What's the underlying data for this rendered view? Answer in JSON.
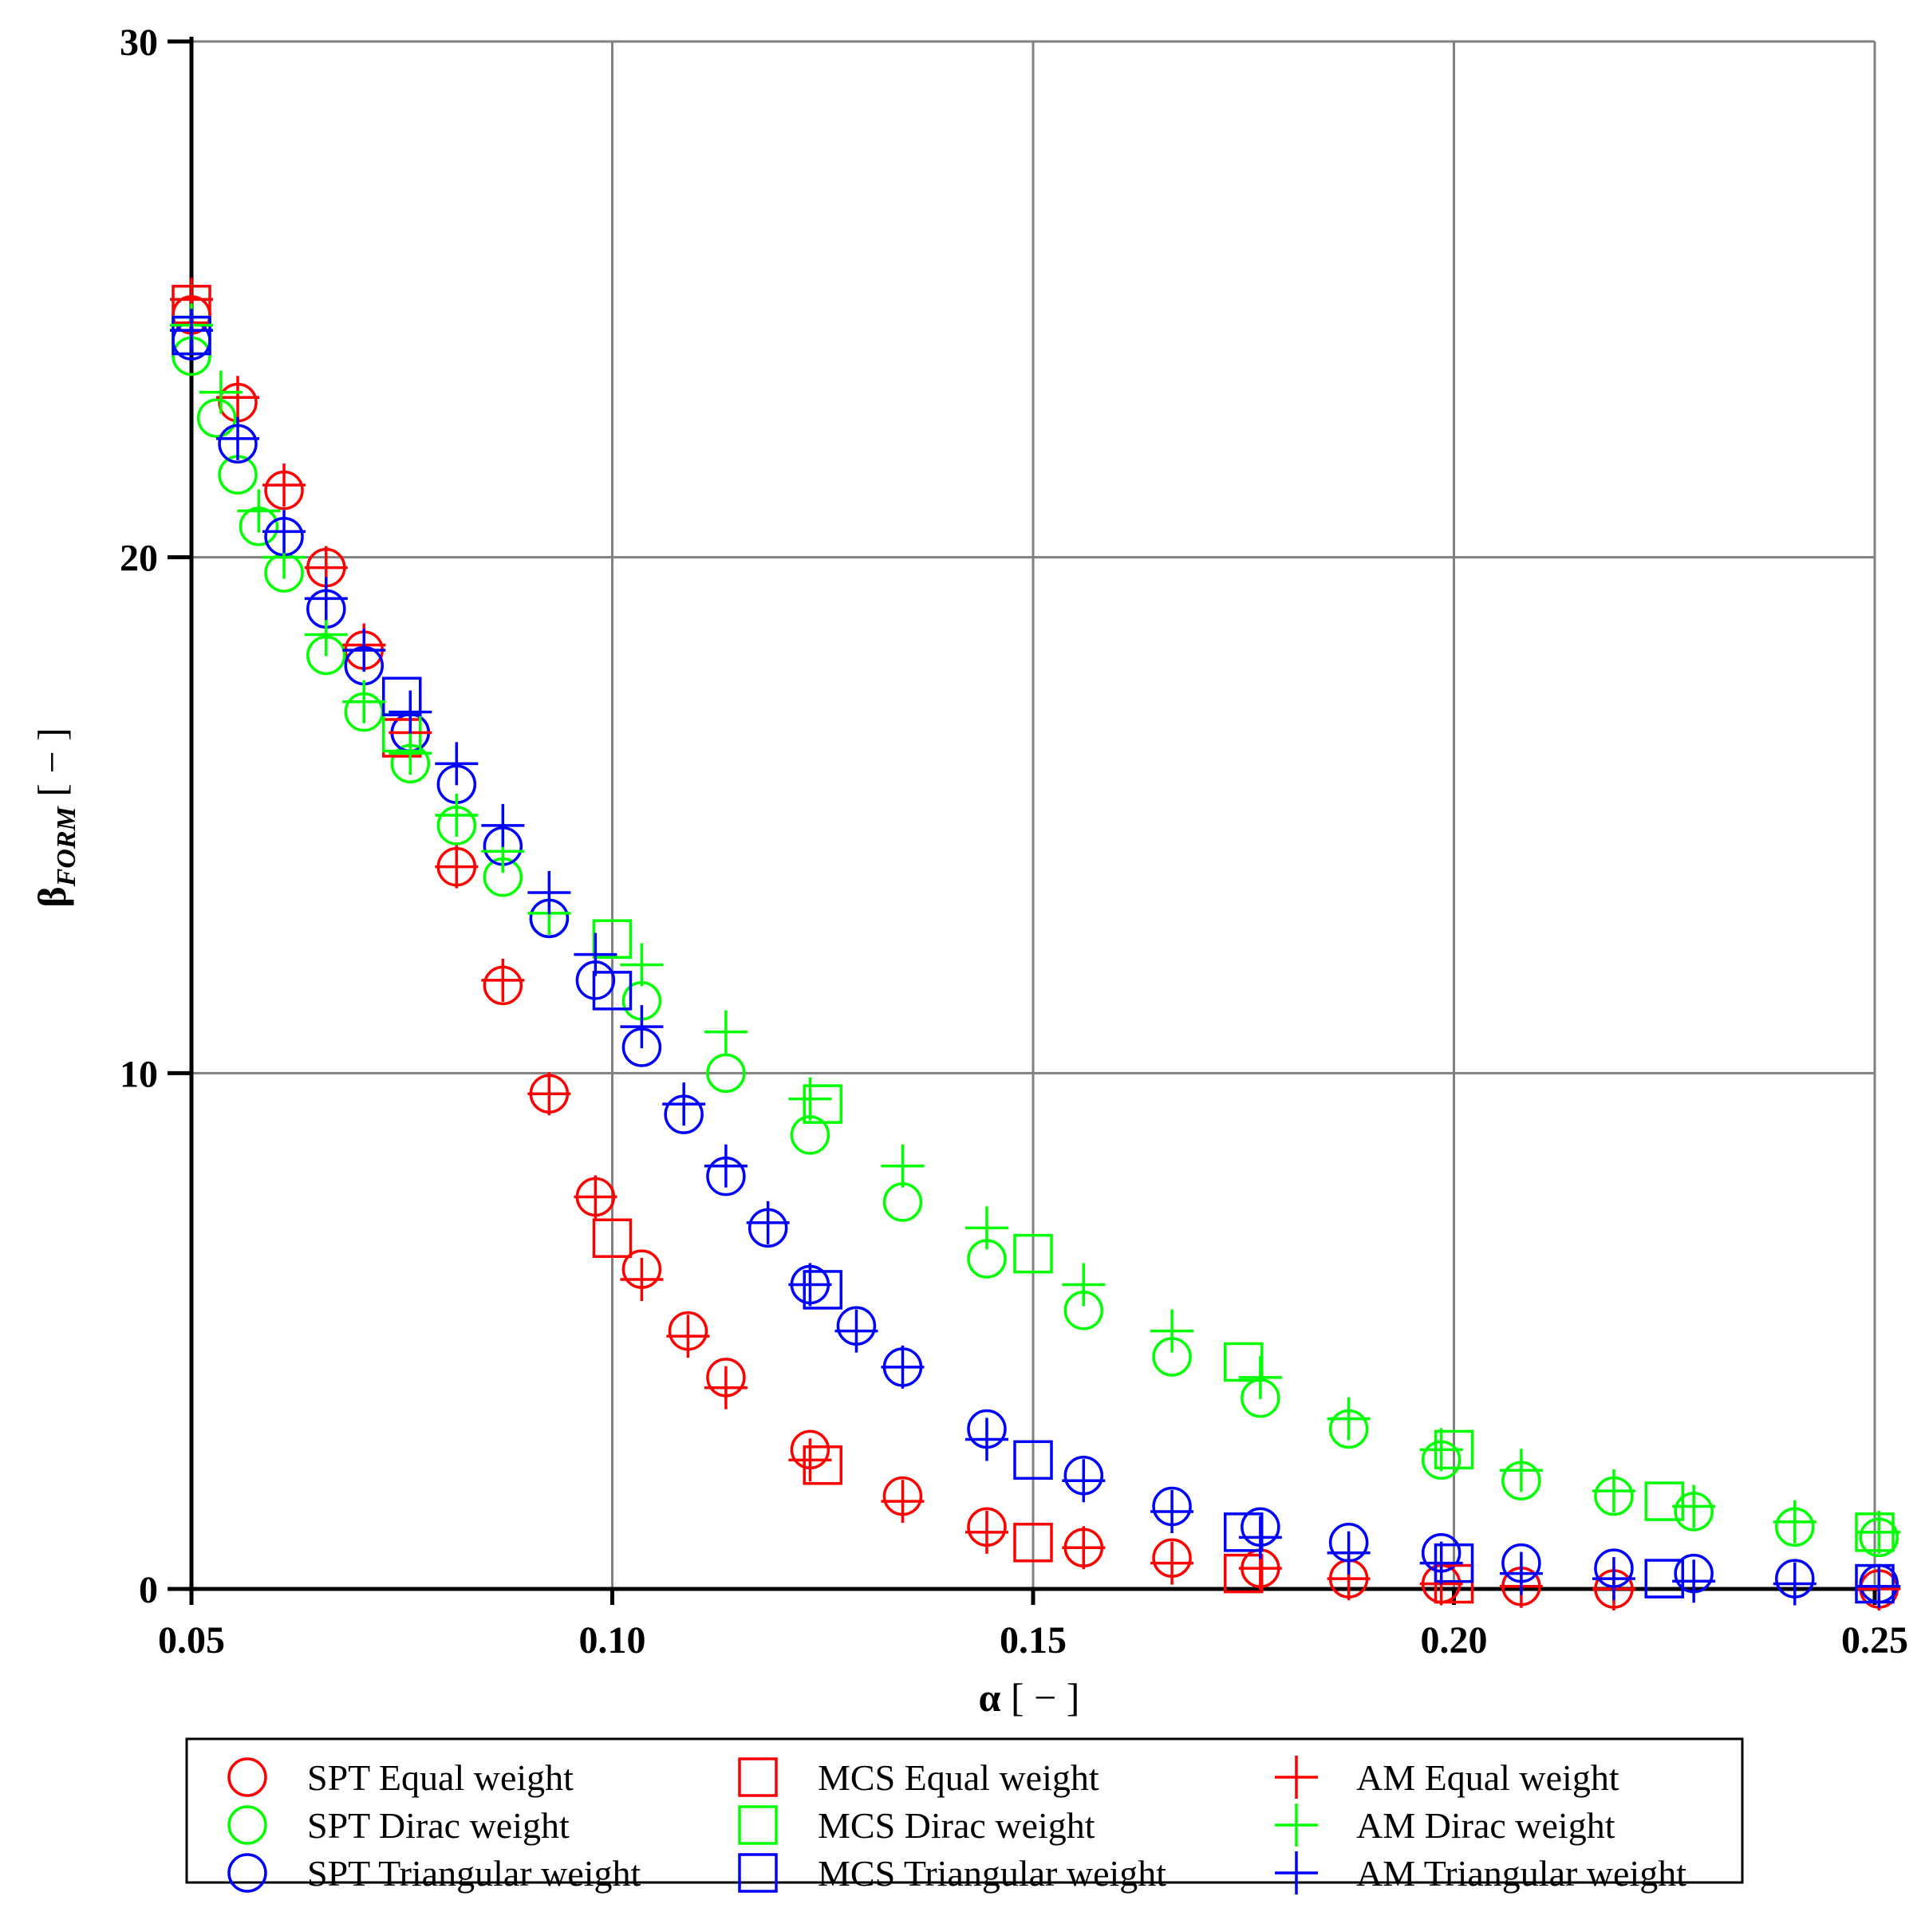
{
  "chart_data": {
    "type": "scatter",
    "title": "",
    "xlabel": {
      "symbol": "α",
      "unit": " [ − ]"
    },
    "ylabel": {
      "symbol": "β",
      "subscript": "FORM",
      "unit": " [ − ]"
    },
    "xlim": [
      0.05,
      0.25
    ],
    "ylim": [
      0,
      30
    ],
    "xticks": [
      0.05,
      0.1,
      0.15,
      0.2,
      0.25
    ],
    "xtick_labels": [
      "0.05",
      "0.10",
      "0.15",
      "0.20",
      "0.25"
    ],
    "yticks": [
      0,
      10,
      20,
      30
    ],
    "ytick_labels": [
      "0",
      "10",
      "20",
      "30"
    ],
    "grid": true,
    "legend_position": "bottom",
    "colors": {
      "red": "#ff0000",
      "green": "#00ff00",
      "blue": "#0000ff",
      "axis": "#000000",
      "grid": "#808080"
    },
    "series": [
      {
        "name": "SPT Equal weight",
        "marker": "circle",
        "color": "#ff0000",
        "x": [
          0.05,
          0.0555,
          0.061,
          0.066,
          0.0705,
          0.076,
          0.0815,
          0.087,
          0.0925,
          0.098,
          0.1035,
          0.109,
          0.1135,
          0.1235,
          0.1345,
          0.1445,
          0.156,
          0.1665,
          0.177,
          0.1875,
          0.1985,
          0.208,
          0.219,
          0.2505
        ],
        "y": [
          24.7,
          23.0,
          21.3,
          19.8,
          18.2,
          16.6,
          14.0,
          11.7,
          9.6,
          7.6,
          6.2,
          5.0,
          4.1,
          2.7,
          1.8,
          1.2,
          0.8,
          0.6,
          0.4,
          0.2,
          0.1,
          0.05,
          0.0,
          0.0
        ]
      },
      {
        "name": "SPT Dirac weight",
        "marker": "circle",
        "color": "#00ff00",
        "x": [
          0.05,
          0.053,
          0.0555,
          0.058,
          0.061,
          0.066,
          0.0705,
          0.076,
          0.0815,
          0.087,
          0.0925,
          0.1035,
          0.1135,
          0.1235,
          0.1345,
          0.1445,
          0.156,
          0.1665,
          0.177,
          0.1875,
          0.1985,
          0.208,
          0.219,
          0.2285,
          0.2405,
          0.2505
        ],
        "y": [
          23.9,
          22.7,
          21.6,
          20.6,
          19.7,
          18.1,
          17.0,
          16.0,
          14.8,
          13.8,
          13.0,
          11.4,
          10.0,
          8.8,
          7.5,
          6.4,
          5.4,
          4.5,
          3.7,
          3.1,
          2.5,
          2.1,
          1.8,
          1.5,
          1.2,
          1.0
        ]
      },
      {
        "name": "SPT Triangular weight",
        "marker": "circle",
        "color": "#0000ff",
        "x": [
          0.05,
          0.0555,
          0.061,
          0.066,
          0.0705,
          0.076,
          0.0815,
          0.087,
          0.0925,
          0.098,
          0.1035,
          0.1085,
          0.1135,
          0.1185,
          0.1235,
          0.129,
          0.1345,
          0.1445,
          0.156,
          0.1665,
          0.177,
          0.1875,
          0.1985,
          0.208,
          0.219,
          0.2285,
          0.2405,
          0.2505
        ],
        "y": [
          24.2,
          22.2,
          20.4,
          19.0,
          17.9,
          16.6,
          15.6,
          14.4,
          13.0,
          11.8,
          10.5,
          9.2,
          8.0,
          7.0,
          5.9,
          5.1,
          4.3,
          3.1,
          2.2,
          1.6,
          1.2,
          0.9,
          0.7,
          0.5,
          0.4,
          0.3,
          0.2,
          0.1
        ]
      },
      {
        "name": "MCS Equal weight",
        "marker": "square",
        "color": "#ff0000",
        "x": [
          0.05,
          0.075,
          0.1,
          0.125,
          0.15,
          0.175,
          0.2
        ],
        "y": [
          24.9,
          16.5,
          6.8,
          2.4,
          0.9,
          0.3,
          0.1
        ]
      },
      {
        "name": "MCS Dirac weight",
        "marker": "square",
        "color": "#00ff00",
        "x": [
          0.05,
          0.075,
          0.1,
          0.125,
          0.15,
          0.175,
          0.2,
          0.225,
          0.25
        ],
        "y": [
          24.3,
          16.6,
          12.6,
          9.4,
          6.5,
          4.4,
          2.7,
          1.7,
          1.1
        ]
      },
      {
        "name": "MCS Triangular weight",
        "marker": "square",
        "color": "#0000ff",
        "x": [
          0.05,
          0.075,
          0.1,
          0.125,
          0.15,
          0.175,
          0.2,
          0.225,
          0.25
        ],
        "y": [
          24.3,
          17.3,
          11.6,
          5.8,
          2.5,
          1.1,
          0.5,
          0.2,
          0.1
        ]
      },
      {
        "name": "AM Equal weight",
        "marker": "plus",
        "color": "#ff0000",
        "x": [
          0.05,
          0.0555,
          0.061,
          0.066,
          0.0705,
          0.076,
          0.0815,
          0.087,
          0.0925,
          0.098,
          0.1035,
          0.109,
          0.1135,
          0.1235,
          0.1345,
          0.1445,
          0.156,
          0.1665,
          0.177,
          0.1875,
          0.1985,
          0.208,
          0.219,
          0.2505
        ],
        "y": [
          25.0,
          23.1,
          21.4,
          19.8,
          18.3,
          16.6,
          14.0,
          11.8,
          9.6,
          7.6,
          6.0,
          4.9,
          3.9,
          2.5,
          1.7,
          1.1,
          0.8,
          0.5,
          0.4,
          0.2,
          0.1,
          0.05,
          0.0,
          0.0
        ]
      },
      {
        "name": "AM Dirac weight",
        "marker": "plus",
        "color": "#00ff00",
        "x": [
          0.05,
          0.0535,
          0.058,
          0.061,
          0.066,
          0.0705,
          0.076,
          0.0815,
          0.087,
          0.0925,
          0.1035,
          0.1135,
          0.1235,
          0.1345,
          0.1445,
          0.156,
          0.1665,
          0.177,
          0.1875,
          0.1985,
          0.208,
          0.219,
          0.2285,
          0.2405,
          0.2505
        ],
        "y": [
          24.5,
          23.2,
          20.9,
          20.0,
          18.5,
          17.2,
          16.2,
          15.0,
          14.3,
          13.1,
          12.1,
          10.8,
          9.5,
          8.2,
          7.0,
          5.9,
          5.0,
          4.1,
          3.3,
          2.7,
          2.3,
          1.9,
          1.6,
          1.3,
          1.1
        ]
      },
      {
        "name": "AM Triangular weight",
        "marker": "plus",
        "color": "#0000ff",
        "x": [
          0.05,
          0.0555,
          0.061,
          0.066,
          0.0705,
          0.076,
          0.0815,
          0.087,
          0.0925,
          0.098,
          0.1035,
          0.1085,
          0.1135,
          0.1185,
          0.1235,
          0.129,
          0.1345,
          0.1445,
          0.156,
          0.1665,
          0.177,
          0.1875,
          0.1985,
          0.208,
          0.219,
          0.2285,
          0.2405,
          0.2505
        ],
        "y": [
          24.4,
          22.3,
          20.5,
          19.2,
          18.2,
          17.0,
          16.0,
          14.8,
          13.5,
          12.3,
          10.9,
          9.4,
          8.2,
          7.1,
          5.9,
          5.0,
          4.3,
          2.9,
          2.1,
          1.5,
          1.0,
          0.7,
          0.5,
          0.3,
          0.2,
          0.15,
          0.1,
          0.05
        ]
      }
    ]
  }
}
